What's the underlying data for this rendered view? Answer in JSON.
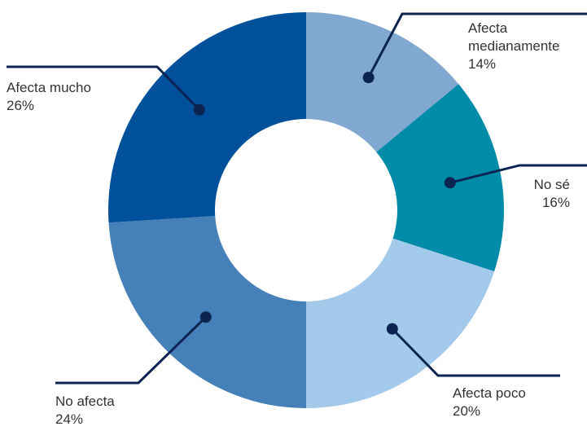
{
  "chart_data": {
    "type": "donut",
    "categories": [
      "Afecta medianamente",
      "No sé",
      "Afecta poco",
      "No afecta",
      "Afecta mucho"
    ],
    "values": [
      14,
      16,
      20,
      24,
      26
    ],
    "value_labels": [
      "14%",
      "16%",
      "20%",
      "24%",
      "26%"
    ],
    "colors": [
      "#80a8d0",
      "#008ca8",
      "#a3caeb",
      "#4580b8",
      "#00509b"
    ]
  }
}
